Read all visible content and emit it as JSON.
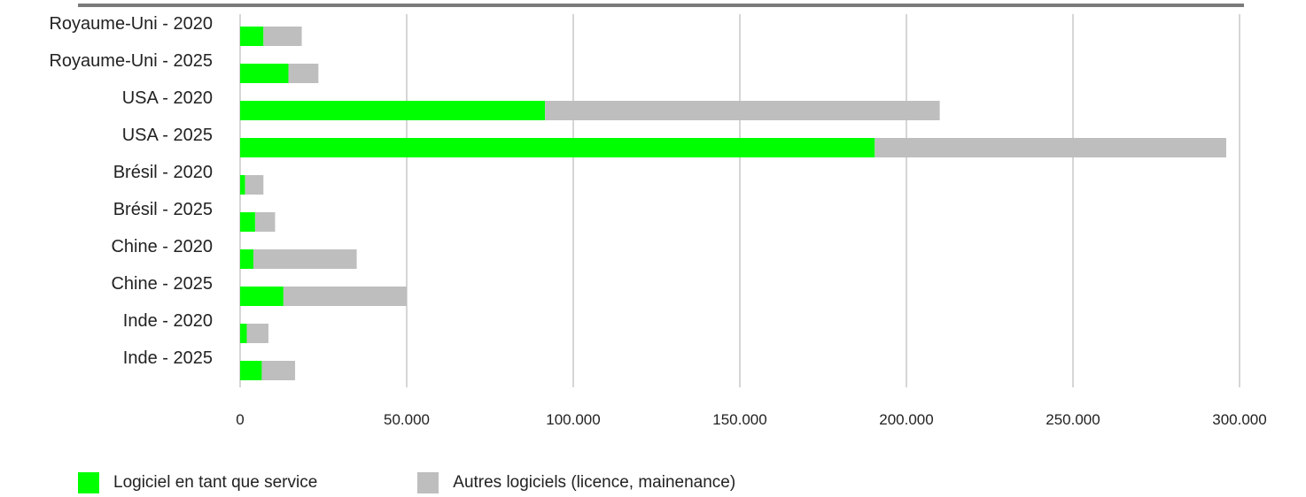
{
  "chart_data": {
    "type": "bar",
    "orientation": "horizontal",
    "stacked": true,
    "categories": [
      "Royaume-Uni - 2020",
      "Royaume-Uni - 2025",
      "USA - 2020",
      "USA - 2025",
      "Brésil - 2020",
      "Brésil - 2025",
      "Chine - 2020",
      "Chine - 2025",
      "Inde - 2020",
      "Inde - 2025"
    ],
    "series": [
      {
        "name": "Logiciel en tant que service",
        "color": "#00ff00",
        "values": [
          7000,
          14500,
          91500,
          190500,
          1500,
          4500,
          4000,
          13000,
          2000,
          6500
        ]
      },
      {
        "name": "Autres logiciels (licence, mainenance)",
        "color": "#bebebe",
        "values": [
          11500,
          9000,
          118500,
          105500,
          5500,
          6000,
          31000,
          37000,
          6500,
          10000
        ]
      }
    ],
    "xlim": [
      0,
      300000
    ],
    "xticks": [
      0,
      50000,
      100000,
      150000,
      200000,
      250000,
      300000
    ],
    "xtick_labels": [
      "0",
      "50.000",
      "100.000",
      "150.000",
      "200.000",
      "250.000",
      "300.000"
    ],
    "grid": "vertical",
    "legend_position": "bottom-left"
  }
}
